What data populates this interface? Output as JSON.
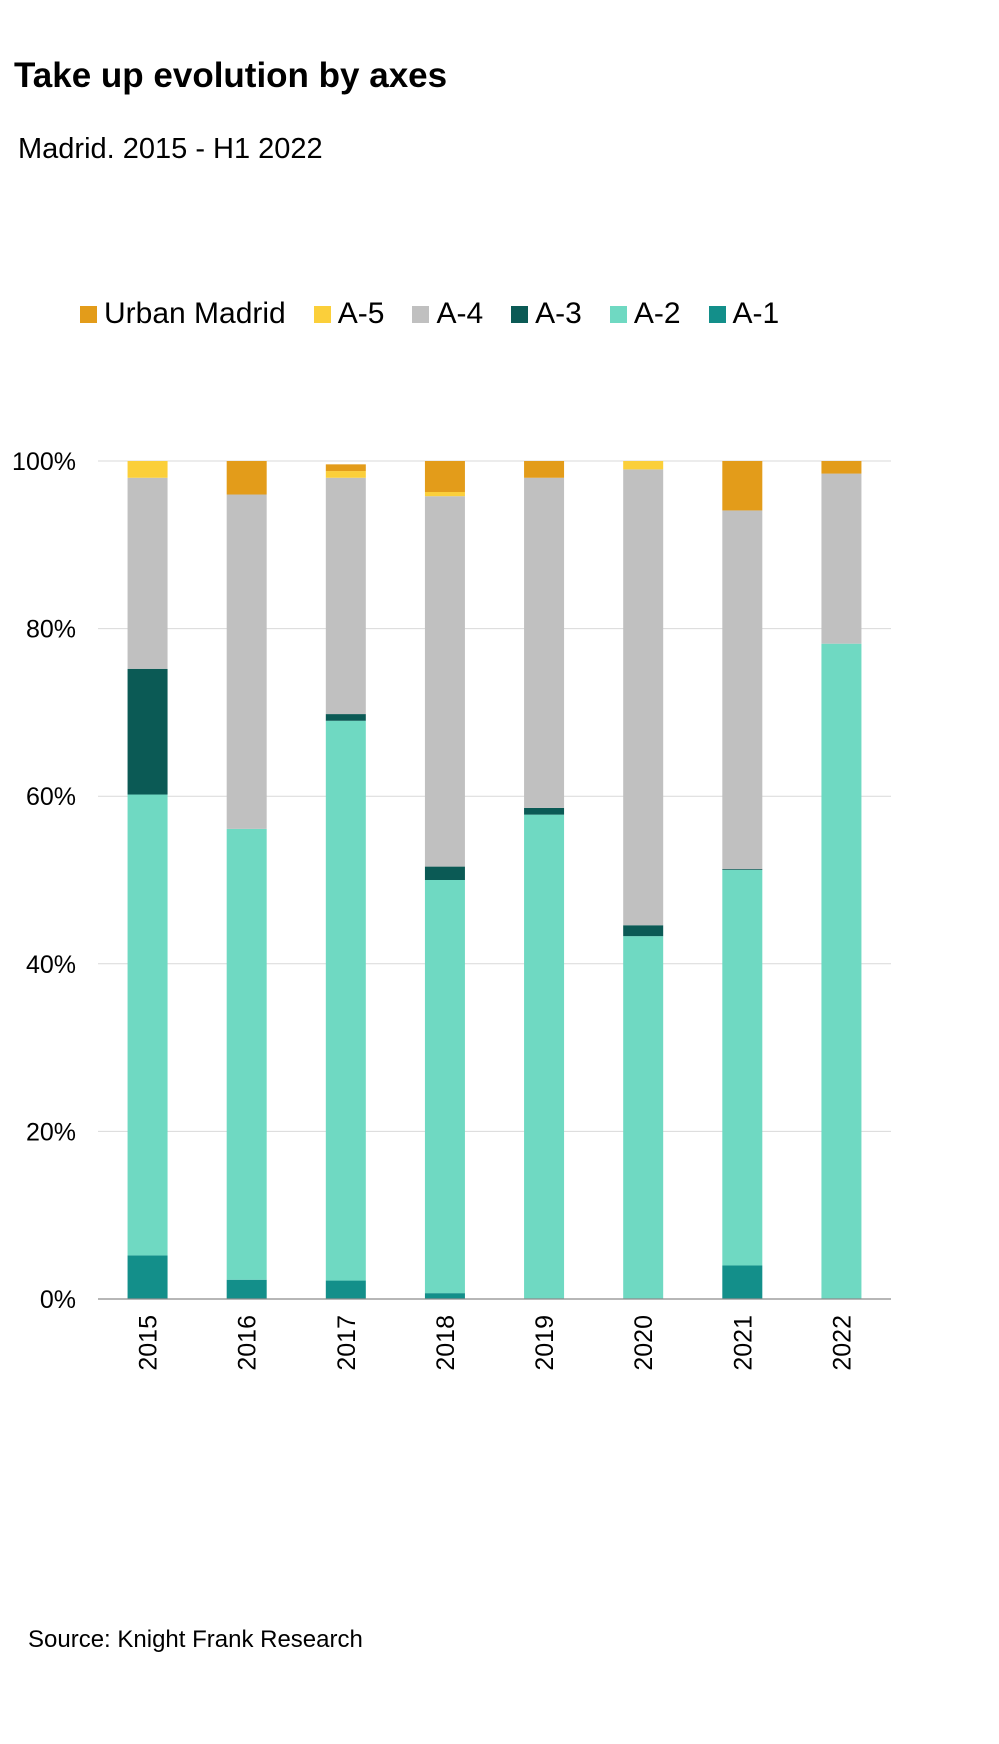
{
  "chart_data": {
    "type": "bar",
    "stacked": true,
    "title": "Take up evolution by axes",
    "subtitle": "Madrid. 2015 - H1 2022",
    "source": "Source: Knight Frank Research",
    "categories": [
      "2015",
      "2016",
      "2017",
      "2018",
      "2019",
      "2020",
      "2021",
      "2022"
    ],
    "y_ticks": [
      "0%",
      "20%",
      "40%",
      "60%",
      "80%",
      "100%"
    ],
    "ylim": [
      0,
      100
    ],
    "grid": true,
    "legend_position": "top",
    "legend_order": [
      "Urban Madrid",
      "A-5",
      "A-4",
      "A-3",
      "A-2",
      "A-1"
    ],
    "series": [
      {
        "name": "A-1",
        "color": "#138f8a",
        "values": [
          5.2,
          2.3,
          2.2,
          0.7,
          0,
          0,
          4.0,
          0
        ]
      },
      {
        "name": "A-2",
        "color": "#6fd9c2",
        "values": [
          55.0,
          53.8,
          66.8,
          49.3,
          57.8,
          43.3,
          47.2,
          78.2
        ]
      },
      {
        "name": "A-3",
        "color": "#0b5a55",
        "values": [
          15.0,
          0,
          0.8,
          1.6,
          0.8,
          1.3,
          0.1,
          0
        ]
      },
      {
        "name": "A-4",
        "color": "#c0c0c0",
        "values": [
          22.8,
          39.9,
          28.2,
          44.2,
          39.4,
          54.4,
          42.8,
          20.3
        ]
      },
      {
        "name": "A-5",
        "color": "#fbcf3a",
        "values": [
          2.0,
          0,
          0.8,
          0.5,
          0,
          1.0,
          0,
          0
        ]
      },
      {
        "name": "Urban Madrid",
        "color": "#e39c1a",
        "values": [
          0,
          4.0,
          0.8,
          3.7,
          2.0,
          0,
          5.9,
          1.5
        ]
      }
    ]
  }
}
